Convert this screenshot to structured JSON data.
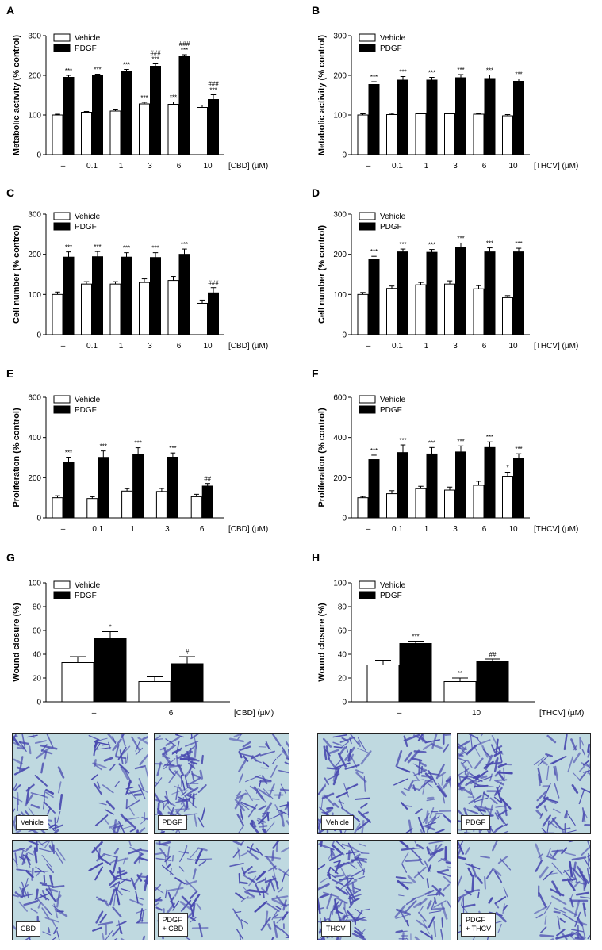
{
  "legend": {
    "vehicle": "Vehicle",
    "pdgf": "PDGF"
  },
  "chart_data": [
    {
      "id": "A",
      "panel_letter": "A",
      "type": "bar",
      "ylabel": "Metabolic activity (% control)",
      "xunit": "[CBD] (µM)",
      "ylim": [
        0,
        300
      ],
      "yticks": [
        "0",
        "100",
        "200",
        "300"
      ],
      "categories": [
        "–",
        "0.1",
        "1",
        "3",
        "6",
        "10"
      ],
      "series": [
        {
          "name": "Vehicle",
          "values": [
            100,
            107,
            110,
            128,
            127,
            119
          ],
          "errors": [
            2,
            2,
            3,
            4,
            6,
            6
          ],
          "annotations": [
            "",
            "",
            "",
            "***",
            "***",
            ""
          ]
        },
        {
          "name": "PDGF",
          "values": [
            195,
            199,
            210,
            223,
            247,
            139
          ],
          "errors": [
            5,
            4,
            5,
            6,
            5,
            12
          ],
          "annotations": [
            "***",
            "***",
            "***",
            "###\n***",
            "###\n***",
            "###\n***"
          ]
        }
      ]
    },
    {
      "id": "B",
      "panel_letter": "B",
      "type": "bar",
      "ylabel": "Metabolic activity (% control)",
      "xunit": "[THCV] (µM)",
      "ylim": [
        0,
        300
      ],
      "yticks": [
        "0",
        "100",
        "200",
        "300"
      ],
      "categories": [
        "–",
        "0.1",
        "1",
        "3",
        "6",
        "10"
      ],
      "series": [
        {
          "name": "Vehicle",
          "values": [
            100,
            101,
            103,
            103,
            102,
            98
          ],
          "errors": [
            3,
            3,
            2,
            2,
            2,
            3
          ],
          "annotations": [
            "",
            "",
            "",
            "",
            "",
            ""
          ]
        },
        {
          "name": "PDGF",
          "values": [
            177,
            188,
            188,
            194,
            192,
            185
          ],
          "errors": [
            7,
            9,
            7,
            8,
            9,
            6
          ],
          "annotations": [
            "***",
            "***",
            "***",
            "***",
            "***",
            "***"
          ]
        }
      ]
    },
    {
      "id": "C",
      "panel_letter": "C",
      "type": "bar",
      "ylabel": "Cell number (% control)",
      "xunit": "[CBD] (µM)",
      "ylim": [
        0,
        300
      ],
      "yticks": [
        "0",
        "100",
        "200",
        "300"
      ],
      "categories": [
        "–",
        "0.1",
        "1",
        "3",
        "6",
        "10"
      ],
      "series": [
        {
          "name": "Vehicle",
          "values": [
            100,
            126,
            126,
            130,
            135,
            78
          ],
          "errors": [
            6,
            6,
            6,
            9,
            10,
            8
          ],
          "annotations": [
            "",
            "",
            "",
            "",
            "",
            ""
          ]
        },
        {
          "name": "PDGF",
          "values": [
            193,
            194,
            193,
            192,
            200,
            104
          ],
          "errors": [
            13,
            13,
            11,
            12,
            13,
            13
          ],
          "annotations": [
            "***",
            "***",
            "***",
            "***",
            "***",
            "###"
          ]
        }
      ]
    },
    {
      "id": "D",
      "panel_letter": "D",
      "type": "bar",
      "ylabel": "Cell number (% control)",
      "xunit": "[THCV] (µM)",
      "ylim": [
        0,
        300
      ],
      "yticks": [
        "0",
        "100",
        "200",
        "300"
      ],
      "categories": [
        "–",
        "0.1",
        "1",
        "3",
        "6",
        "10"
      ],
      "series": [
        {
          "name": "Vehicle",
          "values": [
            100,
            115,
            124,
            126,
            114,
            92
          ],
          "errors": [
            5,
            6,
            6,
            8,
            8,
            5
          ],
          "annotations": [
            "",
            "",
            "",
            "",
            "",
            ""
          ]
        },
        {
          "name": "PDGF",
          "values": [
            188,
            206,
            205,
            218,
            206,
            206
          ],
          "errors": [
            7,
            7,
            7,
            10,
            10,
            9
          ],
          "annotations": [
            "***",
            "***",
            "***",
            "***",
            "***",
            "***"
          ]
        }
      ]
    },
    {
      "id": "E",
      "panel_letter": "E",
      "type": "bar",
      "ylabel": "Proliferation (% control)",
      "xunit": "[CBD] (µM)",
      "ylim": [
        0,
        600
      ],
      "yticks": [
        "0",
        "200",
        "400",
        "600"
      ],
      "categories": [
        "–",
        "0.1",
        "1",
        "3",
        "6"
      ],
      "series": [
        {
          "name": "Vehicle",
          "values": [
            100,
            96,
            133,
            131,
            105
          ],
          "errors": [
            10,
            9,
            12,
            15,
            12
          ],
          "annotations": [
            "",
            "",
            "",
            "",
            ""
          ]
        },
        {
          "name": "PDGF",
          "values": [
            277,
            301,
            316,
            302,
            158
          ],
          "errors": [
            25,
            32,
            33,
            21,
            13
          ],
          "annotations": [
            "***",
            "***",
            "***",
            "***",
            "##"
          ]
        }
      ]
    },
    {
      "id": "F",
      "panel_letter": "F",
      "type": "bar",
      "ylabel": "Proliferation (% control)",
      "xunit": "[THCV] (µM)",
      "ylim": [
        0,
        600
      ],
      "yticks": [
        "0",
        "200",
        "400",
        "600"
      ],
      "categories": [
        "–",
        "0.1",
        "1",
        "3",
        "6",
        "10"
      ],
      "series": [
        {
          "name": "Vehicle",
          "values": [
            100,
            120,
            145,
            138,
            162,
            207
          ],
          "errors": [
            6,
            15,
            12,
            15,
            20,
            20
          ],
          "annotations": [
            "",
            "",
            "",
            "",
            "",
            "*"
          ]
        },
        {
          "name": "PDGF",
          "values": [
            290,
            325,
            318,
            328,
            350,
            297
          ],
          "errors": [
            22,
            38,
            32,
            30,
            28,
            22
          ],
          "annotations": [
            "***",
            "***",
            "***",
            "***",
            "***",
            "***"
          ]
        }
      ]
    },
    {
      "id": "G",
      "panel_letter": "G",
      "type": "bar",
      "ylabel": "Wound closure (%)",
      "xunit": "[CBD] (µM)",
      "ylim": [
        0,
        100
      ],
      "yticks": [
        "0",
        "20",
        "40",
        "60",
        "80",
        "100"
      ],
      "categories": [
        "–",
        "6"
      ],
      "series": [
        {
          "name": "Vehicle",
          "values": [
            33,
            17
          ],
          "errors": [
            5,
            4
          ],
          "annotations": [
            "",
            ""
          ]
        },
        {
          "name": "PDGF",
          "values": [
            53,
            32
          ],
          "errors": [
            6,
            6
          ],
          "annotations": [
            "*",
            "#"
          ]
        }
      ]
    },
    {
      "id": "H",
      "panel_letter": "H",
      "type": "bar",
      "ylabel": "Wound closure (%)",
      "xunit": "[THCV] (µM)",
      "ylim": [
        0,
        100
      ],
      "yticks": [
        "0",
        "20",
        "40",
        "60",
        "80",
        "100"
      ],
      "categories": [
        "–",
        "10"
      ],
      "series": [
        {
          "name": "Vehicle",
          "values": [
            31,
            17
          ],
          "errors": [
            4,
            3
          ],
          "annotations": [
            "",
            "**"
          ]
        },
        {
          "name": "PDGF",
          "values": [
            49,
            34
          ],
          "errors": [
            2,
            2
          ],
          "annotations": [
            "***",
            "##"
          ]
        }
      ]
    }
  ],
  "micrographs": {
    "cbd": [
      {
        "label": "Vehicle",
        "dense_left": 0.45,
        "dense_right": 0.55
      },
      {
        "label": "PDGF",
        "dense_left": 0.75,
        "dense_right": 0.6
      },
      {
        "label": "CBD",
        "dense_left": 0.6,
        "dense_right": 0.5
      },
      {
        "label": "PDGF\n+ CBD",
        "dense_left": 0.45,
        "dense_right": 0.55
      }
    ],
    "thcv": [
      {
        "label": "Vehicle",
        "dense_left": 0.55,
        "dense_right": 0.55
      },
      {
        "label": "PDGF",
        "dense_left": 0.8,
        "dense_right": 0.45
      },
      {
        "label": "THCV",
        "dense_left": 0.85,
        "dense_right": 0.55
      },
      {
        "label": "PDGF\n+ THCV",
        "dense_left": 0.35,
        "dense_right": 0.6
      }
    ]
  },
  "colors": {
    "vehicle_fill": "#ffffff",
    "pdgf_fill": "#000000",
    "micro_bg": "#bfd9e0",
    "cell": "#4a4bb0"
  }
}
